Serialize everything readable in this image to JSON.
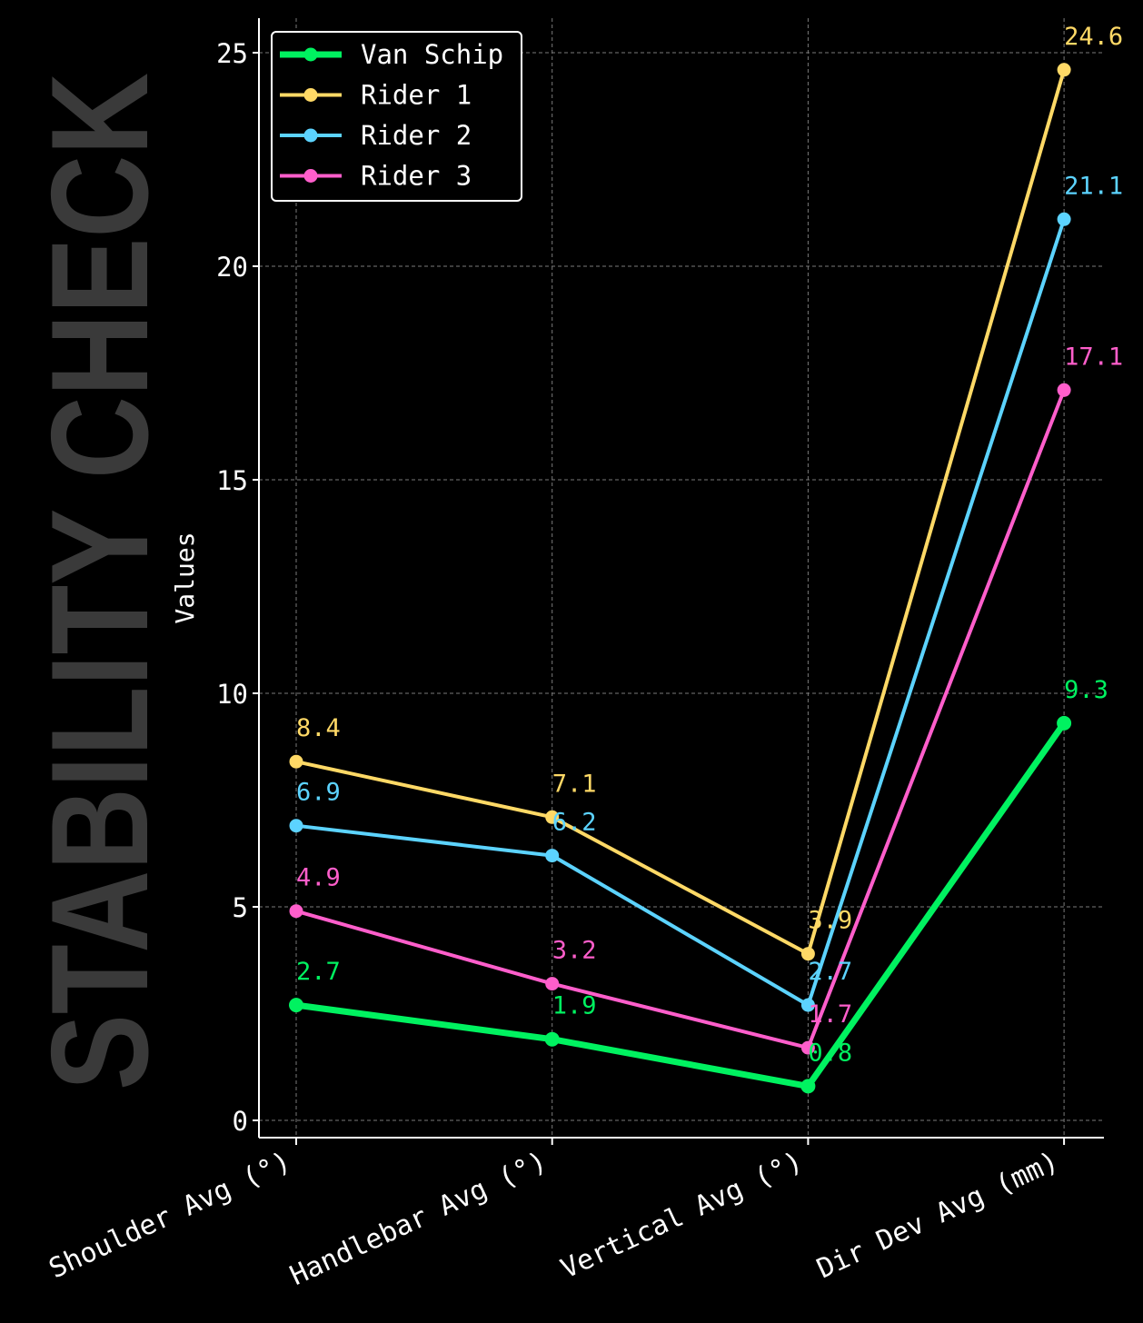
{
  "watermark": "STABILITY CHECK",
  "colors": {
    "background": "#000000",
    "axis": "#ffffff",
    "grid": "#7a7a7a",
    "watermark": "#3a3a3a"
  },
  "chart_data": {
    "type": "line",
    "title": "",
    "xlabel": "",
    "ylabel": "Values",
    "categories": [
      "Shoulder Avg (°)",
      "Handlebar Avg (°)",
      "Vertical Avg (°)",
      "Dir Dev Avg (mm)"
    ],
    "ylim": [
      0,
      25.8
    ],
    "yticks": [
      0,
      5,
      10,
      15,
      20,
      25
    ],
    "grid": true,
    "legend": "top-left",
    "series": [
      {
        "name": "Van Schip",
        "values": [
          2.7,
          1.9,
          0.8,
          9.3
        ],
        "color": "#00f260",
        "emphasis": true
      },
      {
        "name": "Rider 1",
        "values": [
          8.4,
          7.1,
          3.9,
          24.6
        ],
        "color": "#ffd966"
      },
      {
        "name": "Rider 2",
        "values": [
          6.9,
          6.2,
          2.7,
          21.1
        ],
        "color": "#5cd3ff"
      },
      {
        "name": "Rider 3",
        "values": [
          4.9,
          3.2,
          1.7,
          17.1
        ],
        "color": "#ff5ecb"
      }
    ]
  }
}
